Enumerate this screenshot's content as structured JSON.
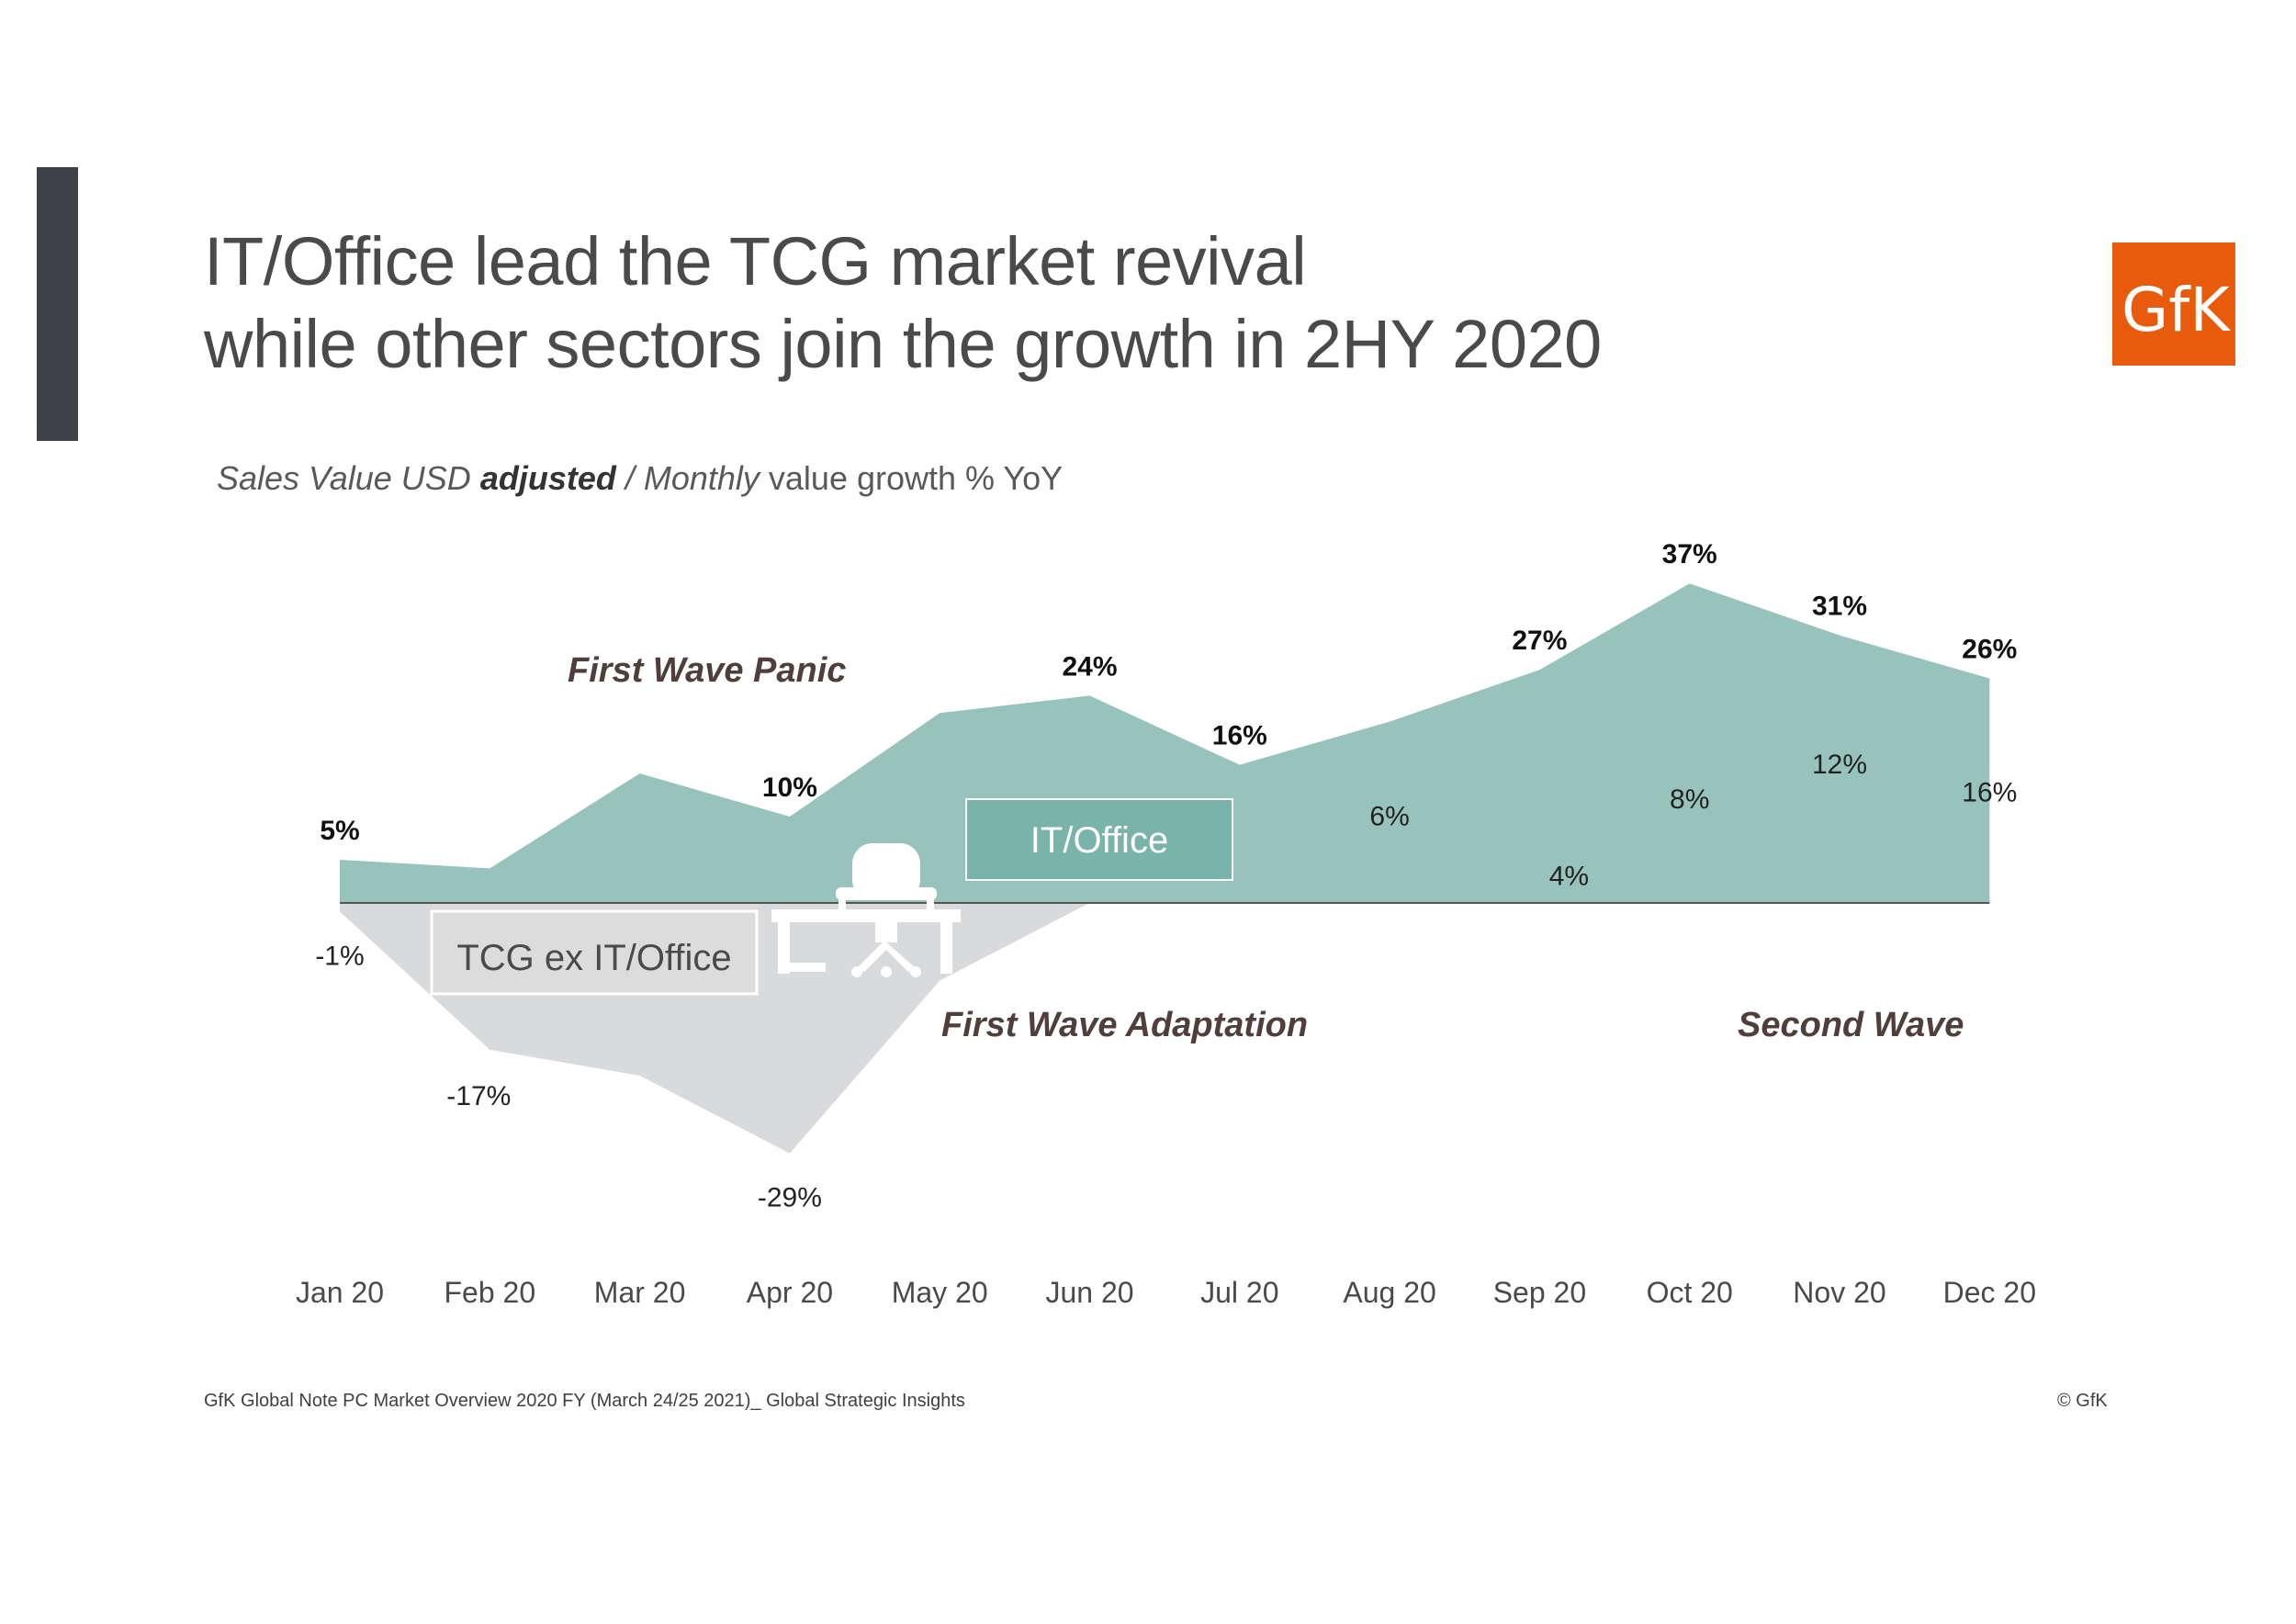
{
  "slide": {
    "title_line1": "IT/Office lead the TCG market revival",
    "title_line2": "while other sectors join the growth in 2HY 2020",
    "subtitle_part1": "Sales Value USD ",
    "subtitle_part2": "adjusted",
    "subtitle_part3": " / Monthly",
    "subtitle_part4": " value growth % YoY",
    "logo_text": "GfK",
    "footer_source": "GfK Global Note PC Market Overview 2020 FY (March 24/25 2021)_ Global Strategic Insights",
    "footer_copyright": "© GfK",
    "colors": {
      "it_office": "#97c3bb",
      "tcg_ex": "#d9dadb",
      "logo": "#e85b0c",
      "accent_bar": "#3d4045"
    }
  },
  "chart_data": {
    "type": "area",
    "title": "",
    "xlabel": "",
    "ylabel": "Monthly value growth % YoY",
    "categories": [
      "Jan 20",
      "Feb 20",
      "Mar 20",
      "Apr 20",
      "May 20",
      "Jun 20",
      "Jul 20",
      "Aug 20",
      "Sep 20",
      "Oct 20",
      "Nov 20",
      "Dec 20"
    ],
    "series": [
      {
        "name": "IT/Office",
        "values": [
          5,
          4,
          15,
          10,
          22,
          24,
          16,
          21,
          27,
          37,
          31,
          26
        ],
        "labels": [
          "5%",
          null,
          null,
          "10%",
          null,
          "24%",
          "16%",
          null,
          "27%",
          "37%",
          "31%",
          "26%"
        ]
      },
      {
        "name": "TCG ex IT/Office",
        "values": [
          -1,
          -17,
          -20,
          -29,
          -9,
          0,
          1,
          6,
          4,
          8,
          12,
          16
        ],
        "labels": [
          "-1%",
          "-17%",
          null,
          "-29%",
          null,
          null,
          null,
          "6%",
          "4%",
          "8%",
          "12%",
          "16%"
        ]
      }
    ],
    "annotations": [
      "First Wave Panic",
      "First Wave Adaptation",
      "Second Wave"
    ],
    "ylim": [
      -30,
      40
    ],
    "grid": false,
    "legend": "inline labels"
  }
}
